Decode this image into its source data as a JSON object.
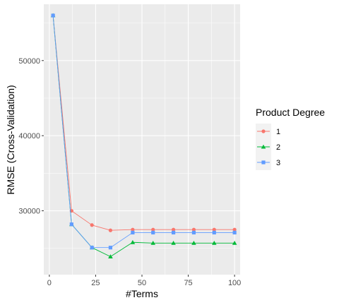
{
  "chart_data": {
    "type": "line",
    "xlabel": "#Terms",
    "ylabel": "RMSE (Cross-Validation)",
    "xlim": [
      -3,
      103
    ],
    "ylim": [
      21500,
      57500
    ],
    "x_ticks": [
      0,
      25,
      50,
      75,
      100
    ],
    "x_tick_labels": [
      "0",
      "25",
      "50",
      "75",
      "100"
    ],
    "y_ticks": [
      30000,
      40000,
      50000
    ],
    "y_tick_labels": [
      "30000",
      "40000",
      "50000"
    ],
    "grid": true,
    "legend": {
      "title": "Product Degree",
      "placement": "right"
    },
    "x": [
      2,
      12,
      23,
      33,
      45,
      56,
      67,
      78,
      89,
      100
    ],
    "series": [
      {
        "name": "1",
        "color": "#F8766D",
        "marker": "circle",
        "values": [
          56000,
          30000,
          28100,
          27400,
          27500,
          27500,
          27500,
          27500,
          27500,
          27500
        ]
      },
      {
        "name": "2",
        "color": "#00BA38",
        "marker": "triangle",
        "values": [
          56000,
          28200,
          25100,
          23900,
          25800,
          25700,
          25700,
          25700,
          25700,
          25700
        ]
      },
      {
        "name": "3",
        "color": "#619CFF",
        "marker": "square",
        "values": [
          56000,
          28200,
          25100,
          25100,
          27100,
          27100,
          27100,
          27100,
          27100,
          27100
        ]
      }
    ]
  }
}
